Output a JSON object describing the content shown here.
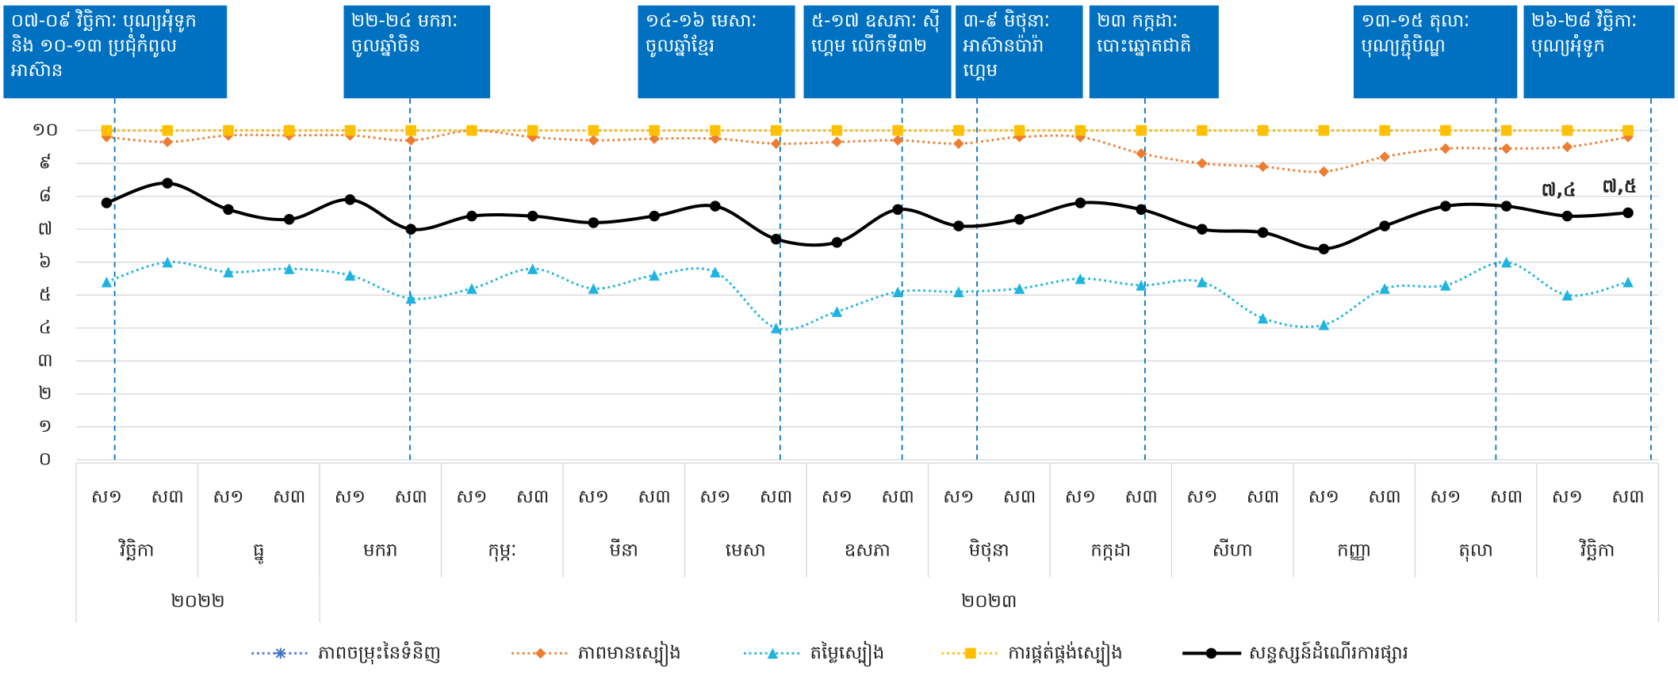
{
  "chart_data": {
    "type": "line",
    "categories": [
      "ស១",
      "ស៣",
      "ស១",
      "ស៣",
      "ស១",
      "ស៣",
      "ស១",
      "ស៣",
      "ស១",
      "ស៣",
      "ស១",
      "ស៣",
      "ស១",
      "ស៣",
      "ស១",
      "ស៣",
      "ស១",
      "ស៣",
      "ស១",
      "ស៣",
      "ស១",
      "ស៣",
      "ស១",
      "ស៣",
      "ស១",
      "ស៣"
    ],
    "months": [
      "វិច្ឆិកា",
      "ធ្នូ",
      "មករា",
      "កុម្ភៈ",
      "មីនា",
      "មេសា",
      "ឧសភា",
      "មិថុនា",
      "កក្កដា",
      "សីហា",
      "កញ្ញា",
      "តុលា",
      "វិច្ឆិកា"
    ],
    "years": [
      "២០២២",
      "២០២៣"
    ],
    "ylim": [
      0,
      10
    ],
    "yticks": [
      {
        "value": 0,
        "label": "០"
      },
      {
        "value": 1,
        "label": "១"
      },
      {
        "value": 2,
        "label": "២"
      },
      {
        "value": 3,
        "label": "៣"
      },
      {
        "value": 4,
        "label": "៤"
      },
      {
        "value": 5,
        "label": "៥"
      },
      {
        "value": 6,
        "label": "៦"
      },
      {
        "value": 7,
        "label": "៧"
      },
      {
        "value": 8,
        "label": "៨"
      },
      {
        "value": 9,
        "label": "៩"
      },
      {
        "value": 10,
        "label": "១០"
      }
    ],
    "grid": true,
    "legend": "bottom",
    "series": [
      {
        "name": "ភាពចម្រុះនៃទំនិញ",
        "color": "#4472c4",
        "marker": "star",
        "style": "dotted",
        "values": [
          10,
          10,
          10,
          10,
          10,
          10,
          10,
          10,
          10,
          10,
          10,
          10,
          10,
          10,
          10,
          10,
          10,
          10,
          10,
          10,
          10,
          10,
          10,
          10,
          10,
          10
        ]
      },
      {
        "name": "ភាពមានស្បៀង",
        "color": "#ed7d31",
        "marker": "diamond",
        "style": "dotted",
        "values": [
          9.8,
          9.65,
          9.85,
          9.85,
          9.85,
          9.7,
          10,
          9.8,
          9.7,
          9.75,
          9.75,
          9.6,
          9.65,
          9.7,
          9.6,
          9.8,
          9.8,
          9.3,
          9.0,
          8.9,
          8.75,
          9.2,
          9.45,
          9.45,
          9.5,
          9.8
        ]
      },
      {
        "name": "តម្លៃស្បៀង",
        "color": "#1fb4e0",
        "marker": "triangle",
        "style": "dotted",
        "values": [
          5.4,
          6.0,
          5.7,
          5.8,
          5.6,
          4.9,
          5.2,
          5.8,
          5.2,
          5.6,
          5.7,
          4.0,
          4.5,
          5.1,
          5.1,
          5.2,
          5.5,
          5.3,
          5.4,
          4.3,
          4.1,
          5.2,
          5.3,
          6.0,
          5.0,
          5.4
        ]
      },
      {
        "name": "ការផ្គត់ផ្គង់ស្បៀង",
        "color": "#ffc000",
        "marker": "square",
        "style": "dotted",
        "values": [
          10,
          10,
          10,
          10,
          10,
          10,
          10,
          10,
          10,
          10,
          10,
          10,
          10,
          10,
          10,
          10,
          10,
          10,
          10,
          10,
          10,
          10,
          10,
          10,
          10,
          10
        ]
      },
      {
        "name": "សន្ទស្សន៍ដំណើរការផ្សារ",
        "color": "#000000",
        "marker": "circle",
        "style": "solid",
        "values": [
          7.8,
          8.4,
          7.6,
          7.3,
          7.9,
          7.0,
          7.4,
          7.4,
          7.2,
          7.4,
          7.7,
          6.7,
          6.6,
          7.6,
          7.1,
          7.3,
          7.8,
          7.6,
          7.0,
          6.9,
          6.4,
          7.1,
          7.7,
          7.7,
          7.4,
          7.5
        ],
        "value_labels": [
          null,
          null,
          null,
          null,
          null,
          null,
          null,
          null,
          null,
          null,
          null,
          null,
          null,
          null,
          null,
          null,
          null,
          null,
          null,
          null,
          null,
          null,
          null,
          null,
          "៧,៤",
          "៧,៥"
        ]
      }
    ],
    "annotations": [
      {
        "text": "០៧-០៩ វិច្ឆិកាៈ បុណ្យអុំទូក និង ១០-១៣ ប្រជុំកំពូលអាស៊ាន"
      },
      {
        "text": "២២-២៤ មករាៈ ចូលឆ្នាំចិន"
      },
      {
        "text": "១៤-១៦ មេសាៈ ចូលឆ្នាំខ្មែរ"
      },
      {
        "text": "៥-១៧ ឧសភាៈ ស៊ីហ្គេម លើកទី៣២"
      },
      {
        "text": "៣-៩ មិថុនាៈ អាស៊ានប៉ារ៉ាហ្គេម"
      },
      {
        "text": "២៣ កក្កដាៈ បោះឆ្នោតជាតិ"
      },
      {
        "text": "១៣-១៥ តុលាៈ បុណ្យភ្ជុំបិណ្ឌ"
      },
      {
        "text": "២៦-២៨ វិច្ឆិកាៈ បុណ្យអុំទូក"
      }
    ]
  }
}
